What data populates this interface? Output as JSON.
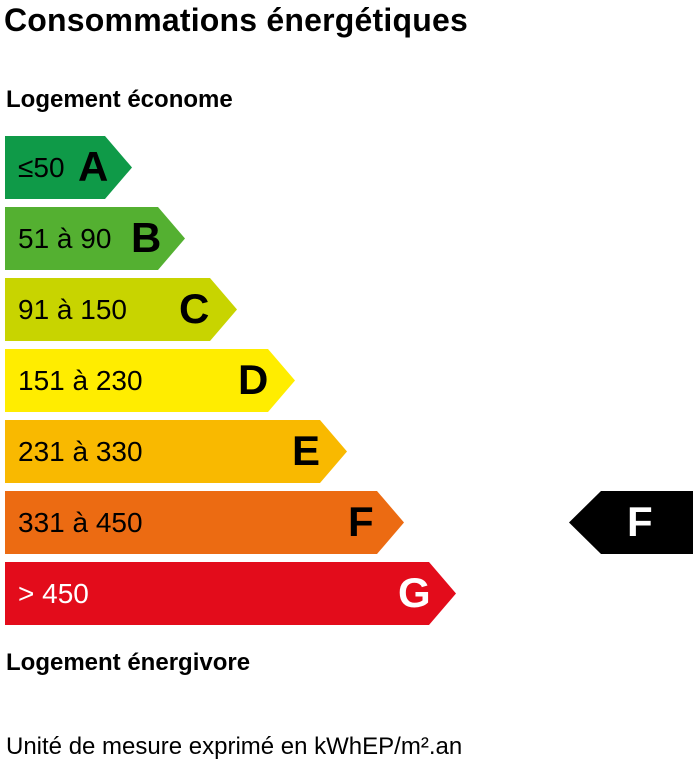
{
  "title": "Consommations énergétiques",
  "top_label": "Logement économe",
  "bottom_label": "Logement énergivore",
  "unit_note": "Unité de mesure exprimé en kWhEP/m².an",
  "chart_data": {
    "type": "bar",
    "categories": [
      "A",
      "B",
      "C",
      "D",
      "E",
      "F",
      "G"
    ],
    "ranges": [
      "≤50",
      "51 à 90",
      "91 à 150",
      "151 à 230",
      "231 à 330",
      "331 à 450",
      "> 450"
    ],
    "colors": [
      "#0f9a48",
      "#54b031",
      "#c8d400",
      "#ffed00",
      "#f9b900",
      "#ec6b12",
      "#e30c1b"
    ],
    "text_colors": [
      "#000000",
      "#000000",
      "#000000",
      "#000000",
      "#000000",
      "#000000",
      "#ffffff"
    ],
    "rating": "F"
  }
}
